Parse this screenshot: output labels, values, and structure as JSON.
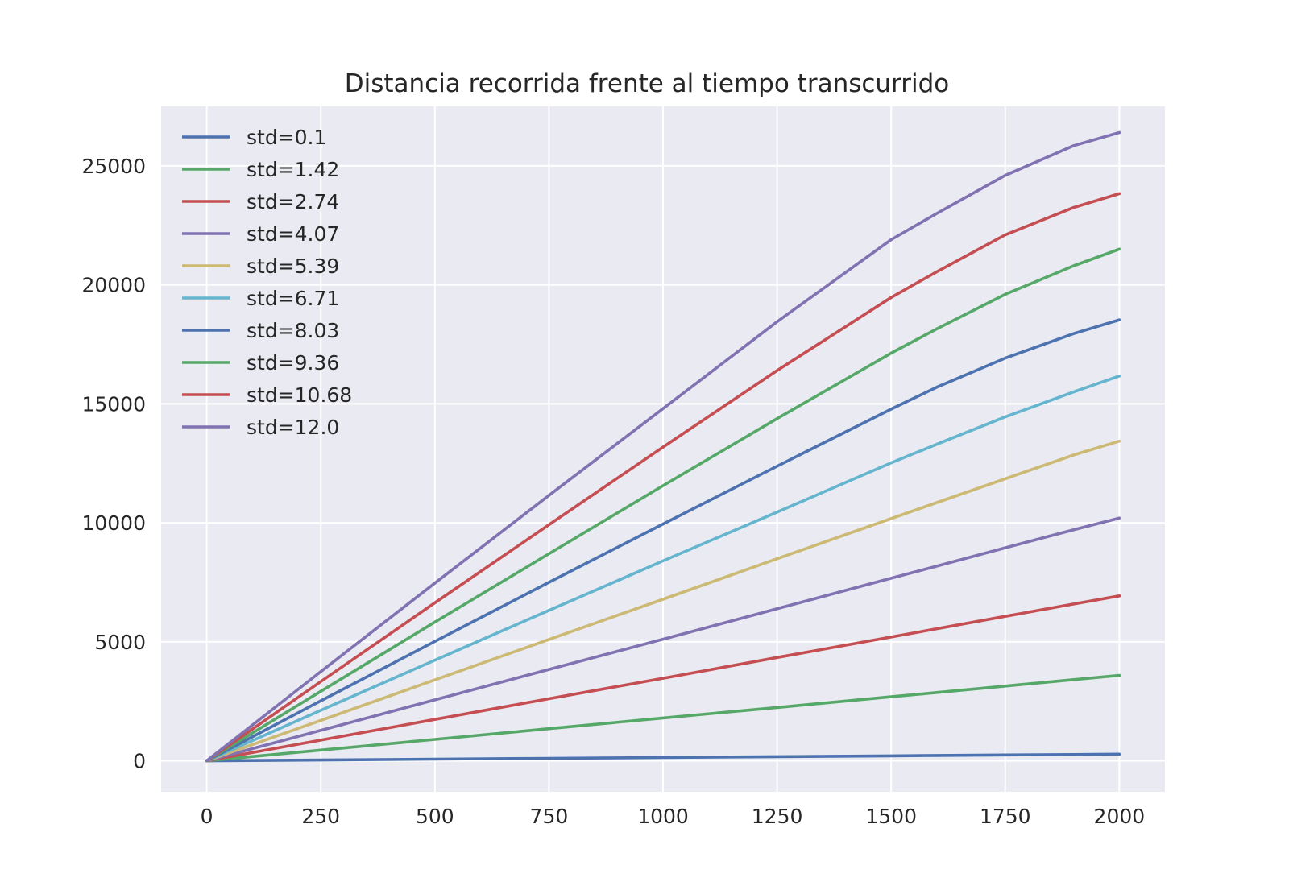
{
  "chart_data": {
    "type": "line",
    "title": "Distancia recorrida frente al tiempo transcurrido",
    "xlabel": "",
    "ylabel": "",
    "xlim": [
      -100,
      2100
    ],
    "ylim": [
      -1300,
      27500
    ],
    "xticks": [
      0,
      250,
      500,
      750,
      1000,
      1250,
      1500,
      1750,
      2000
    ],
    "yticks": [
      0,
      5000,
      10000,
      15000,
      20000,
      25000
    ],
    "grid": true,
    "legend_position": "upper-left",
    "colors": {
      "background": "#eaeaf2",
      "grid": "#ffffff",
      "text": "#262626"
    },
    "x": [
      0,
      250,
      500,
      750,
      1000,
      1250,
      1500,
      1600,
      1750,
      1900,
      2000
    ],
    "series": [
      {
        "name": "std=0.1",
        "color": "#4c72b0",
        "values": [
          0,
          35,
          70,
          105,
          140,
          175,
          210,
          225,
          245,
          265,
          280
        ]
      },
      {
        "name": "std=1.42",
        "color": "#55a868",
        "values": [
          0,
          450,
          900,
          1350,
          1800,
          2240,
          2690,
          2870,
          3140,
          3410,
          3590
        ]
      },
      {
        "name": "std=2.74",
        "color": "#c44e52",
        "values": [
          0,
          870,
          1740,
          2610,
          3470,
          4340,
          5200,
          5550,
          6070,
          6590,
          6930
        ]
      },
      {
        "name": "std=4.07",
        "color": "#8172b2",
        "values": [
          0,
          1280,
          2560,
          3840,
          5110,
          6390,
          7670,
          8180,
          8950,
          9710,
          10200
        ]
      },
      {
        "name": "std=5.39",
        "color": "#ccb974",
        "values": [
          0,
          1700,
          3400,
          5100,
          6790,
          8490,
          10180,
          10850,
          11850,
          12850,
          13430
        ]
      },
      {
        "name": "std=6.71",
        "color": "#64b5cd",
        "values": [
          0,
          2120,
          4230,
          6320,
          8400,
          10450,
          12520,
          13300,
          14450,
          15500,
          16170
        ]
      },
      {
        "name": "std=8.03",
        "color": "#4c72b0",
        "values": [
          0,
          2520,
          5020,
          7500,
          9950,
          12380,
          14780,
          15700,
          16920,
          17950,
          18530
        ]
      },
      {
        "name": "std=9.36",
        "color": "#55a868",
        "values": [
          0,
          2920,
          5830,
          8700,
          11560,
          14380,
          17130,
          18150,
          19600,
          20800,
          21500
        ]
      },
      {
        "name": "std=10.68",
        "color": "#c44e52",
        "values": [
          0,
          3330,
          6640,
          9920,
          13180,
          16400,
          19470,
          20550,
          22100,
          23250,
          23830
        ]
      },
      {
        "name": "std=12.0",
        "color": "#8172b2",
        "values": [
          0,
          3750,
          7470,
          11150,
          14800,
          18450,
          21900,
          23000,
          24600,
          25850,
          26400
        ]
      }
    ]
  }
}
